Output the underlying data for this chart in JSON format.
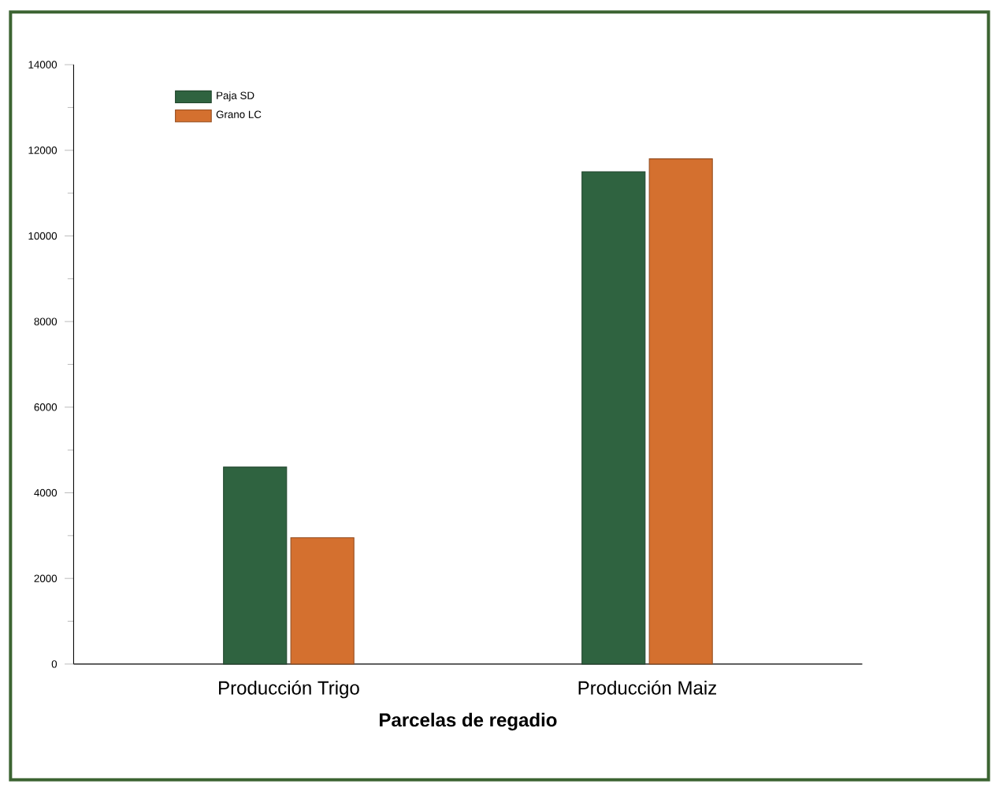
{
  "chart_data": {
    "type": "bar",
    "xlabel": "Parcelas de regadio",
    "categories": [
      "Producción Trigo",
      "Producción Maiz"
    ],
    "series": [
      {
        "name": "Paja SD",
        "color": "#2f6340",
        "values": [
          4600,
          11500
        ]
      },
      {
        "name": "Grano LC",
        "color": "#d4702f",
        "values": [
          2950,
          11800
        ]
      }
    ],
    "ylim": [
      0,
      14000
    ],
    "yticks": [
      0,
      2000,
      4000,
      6000,
      8000,
      10000,
      12000,
      14000
    ],
    "legend": "top left"
  }
}
